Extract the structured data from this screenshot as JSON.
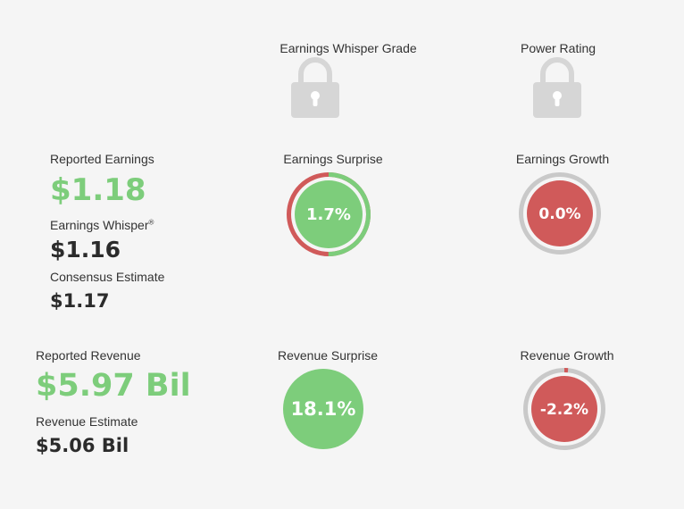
{
  "grades": {
    "whisper_grade_label": "Earnings Whisper Grade",
    "power_rating_label": "Power Rating"
  },
  "earnings": {
    "reported_label": "Reported Earnings",
    "reported_value": "$1.18",
    "whisper_label": "Earnings Whisper",
    "whisper_mark": "®",
    "whisper_value": "$1.16",
    "consensus_label": "Consensus Estimate",
    "consensus_value": "$1.17",
    "surprise_label": "Earnings Surprise",
    "surprise_value": "1.7%",
    "surprise_ring_fraction": 0.5,
    "growth_label": "Earnings Growth",
    "growth_value": "0.0%"
  },
  "revenue": {
    "reported_label": "Reported Revenue",
    "reported_value": "$5.97 Bil",
    "estimate_label": "Revenue Estimate",
    "estimate_value": "$5.06 Bil",
    "surprise_label": "Revenue Surprise",
    "surprise_value": "18.1%",
    "growth_label": "Revenue Growth",
    "growth_value": "-2.2%",
    "growth_ring_fraction": 0.015
  },
  "colors": {
    "positive": "#7dcd7b",
    "negative": "#d05a5a",
    "ring_track": "#c9c9c9",
    "lock": "#d6d6d6"
  }
}
